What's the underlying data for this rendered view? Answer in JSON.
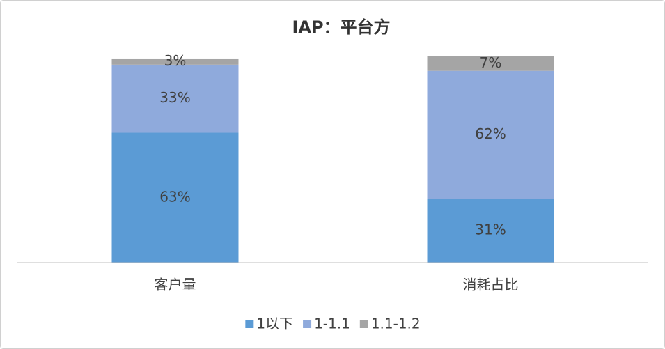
{
  "chart_data": {
    "type": "stacked-bar",
    "title": "IAP：平台方",
    "categories": [
      "客户量",
      "消耗占比"
    ],
    "series": [
      {
        "name": "1以下",
        "color": "#5b9bd5",
        "values": [
          63,
          31
        ],
        "value_labels": [
          "63%",
          "31%"
        ]
      },
      {
        "name": "1-1.1",
        "color": "#8faadc",
        "values": [
          33,
          62
        ],
        "value_labels": [
          "33%",
          "62%"
        ]
      },
      {
        "name": "1.1-1.2",
        "color": "#a5a5a5",
        "values": [
          3,
          7
        ],
        "value_labels": [
          "3%",
          "7%"
        ]
      }
    ],
    "ylim": [
      0,
      100
    ],
    "legend": "bottom"
  }
}
